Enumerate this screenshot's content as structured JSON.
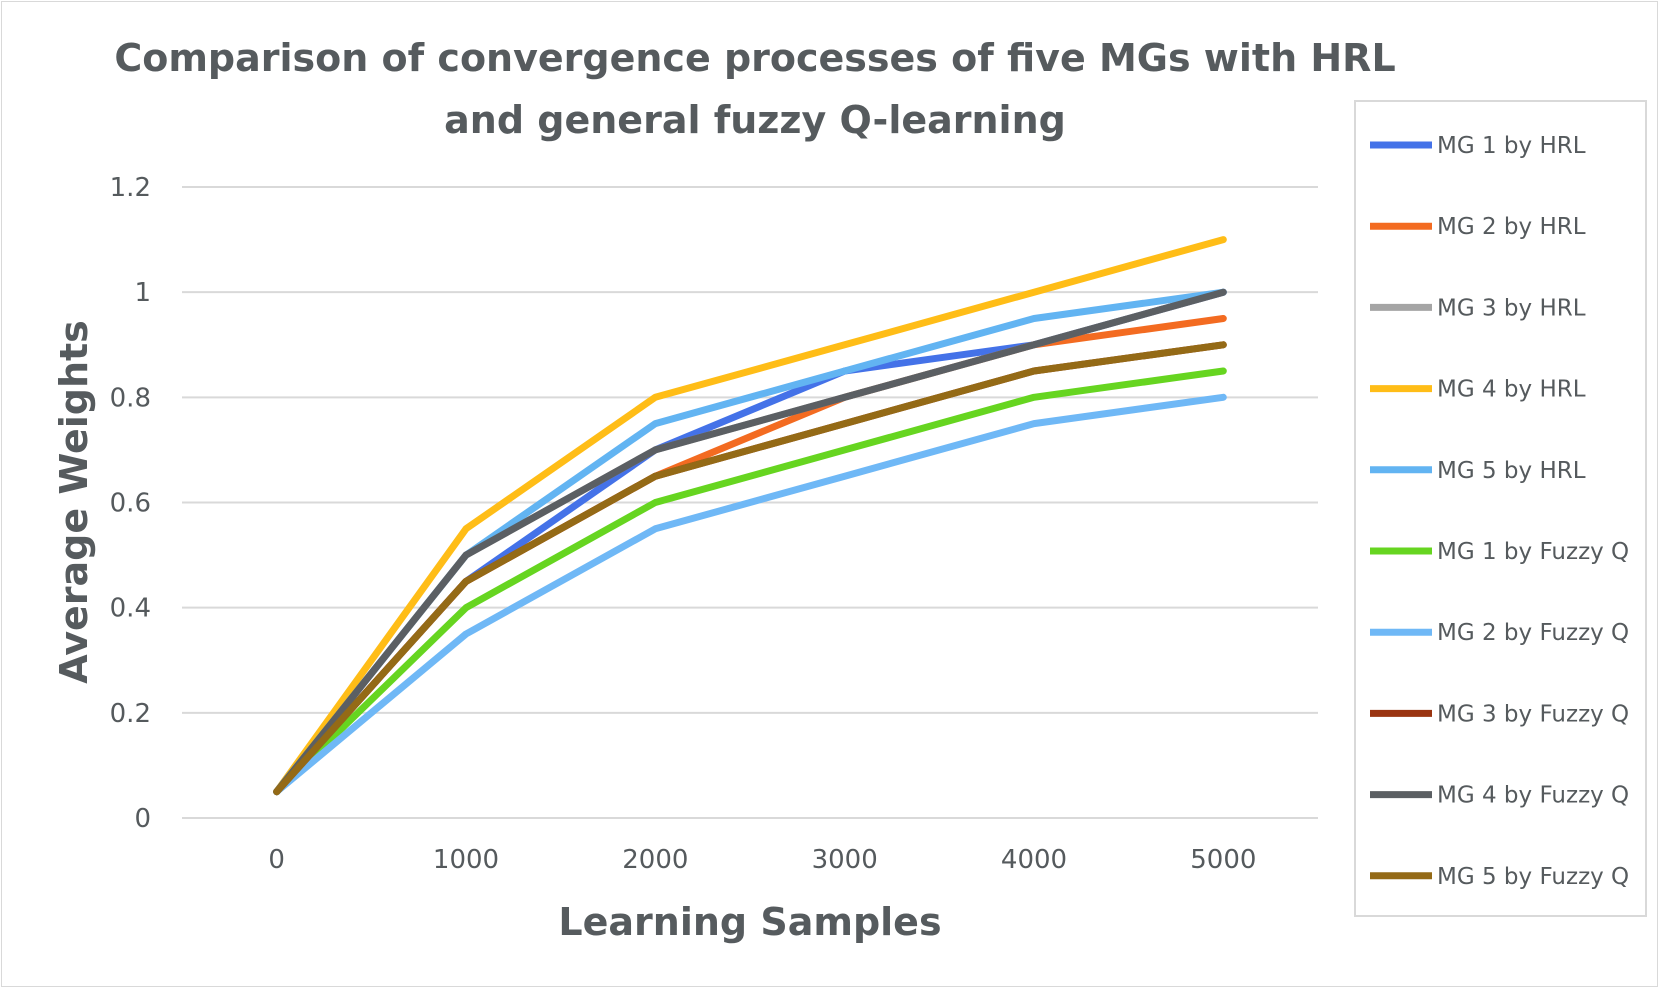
{
  "chart_data": {
    "type": "line",
    "title_lines": [
      "Comparison of convergence processes of five MGs with HRL",
      "and general fuzzy Q-learning"
    ],
    "xlabel": "Learning Samples",
    "ylabel": "Average Weights",
    "categories": [
      "0",
      "1000",
      "2000",
      "3000",
      "4000",
      "5000"
    ],
    "y_ticks": [
      "0",
      "0.2",
      "0.4",
      "0.6",
      "0.8",
      "1",
      "1.2"
    ],
    "ylim": [
      0,
      1.2
    ],
    "grid": true,
    "legend_position": "right",
    "series": [
      {
        "name": "MG 1 by HRL",
        "color": "#4472e8",
        "values": [
          0.05,
          0.45,
          0.7,
          0.85,
          0.9,
          1.0
        ]
      },
      {
        "name": "MG 2 by HRL",
        "color": "#f36b21",
        "values": [
          0.05,
          0.45,
          0.65,
          0.8,
          0.9,
          0.95
        ]
      },
      {
        "name": "MG 3 by HRL",
        "color": "#a5a5a5",
        "values": [
          0.05,
          0.5,
          0.7,
          0.8,
          0.9,
          1.0
        ]
      },
      {
        "name": "MG 4 by HRL",
        "color": "#ffbd17",
        "values": [
          0.05,
          0.55,
          0.8,
          0.9,
          1.0,
          1.1
        ]
      },
      {
        "name": "MG 5 by HRL",
        "color": "#62b4f2",
        "values": [
          0.05,
          0.5,
          0.75,
          0.85,
          0.95,
          1.0
        ]
      },
      {
        "name": "MG 1 by Fuzzy Q",
        "color": "#66d520",
        "values": [
          0.05,
          0.4,
          0.6,
          0.7,
          0.8,
          0.85
        ]
      },
      {
        "name": "MG 2 by Fuzzy Q",
        "color": "#6fb8f6",
        "values": [
          0.05,
          0.35,
          0.55,
          0.65,
          0.75,
          0.8
        ]
      },
      {
        "name": "MG 3 by Fuzzy Q",
        "color": "#9a3411",
        "values": [
          0.05,
          0.45,
          0.65,
          0.75,
          0.85,
          0.9
        ]
      },
      {
        "name": "MG 4 by Fuzzy Q",
        "color": "#5b5f63",
        "values": [
          0.05,
          0.5,
          0.7,
          0.8,
          0.9,
          1.0
        ]
      },
      {
        "name": "MG 5 by Fuzzy Q",
        "color": "#946a16",
        "values": [
          0.05,
          0.45,
          0.65,
          0.75,
          0.85,
          0.9
        ]
      }
    ]
  }
}
